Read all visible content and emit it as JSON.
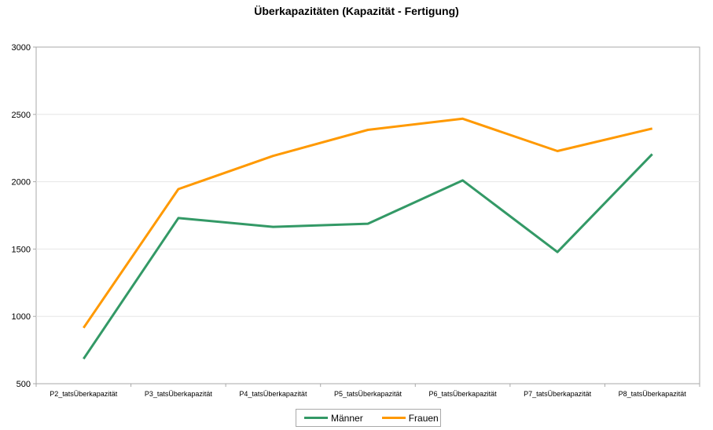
{
  "chart_data": {
    "type": "line",
    "title": "Überkapazitäten (Kapazität - Fertigung)",
    "categories": [
      "P2_tatsÜberkapazität",
      "P3_tatsÜberkapazität",
      "P4_tatsÜberkapazität",
      "P5_tatsÜberkapazität",
      "P6_tatsÜberkapazität",
      "P7_tatsÜberkapazität",
      "P8_tatsÜberkapazität"
    ],
    "series": [
      {
        "name": "Männer",
        "color": "#339966",
        "values": [
          685,
          1730,
          1665,
          1688,
          2010,
          1478,
          2205
        ]
      },
      {
        "name": "Frauen",
        "color": "#ff9900",
        "values": [
          915,
          1945,
          2192,
          2385,
          2468,
          2228,
          2395
        ]
      }
    ],
    "ylim": [
      500,
      3000
    ],
    "yticks": [
      500,
      1000,
      1500,
      2000,
      2500,
      3000
    ],
    "grid": true,
    "legend_position": "bottom"
  }
}
